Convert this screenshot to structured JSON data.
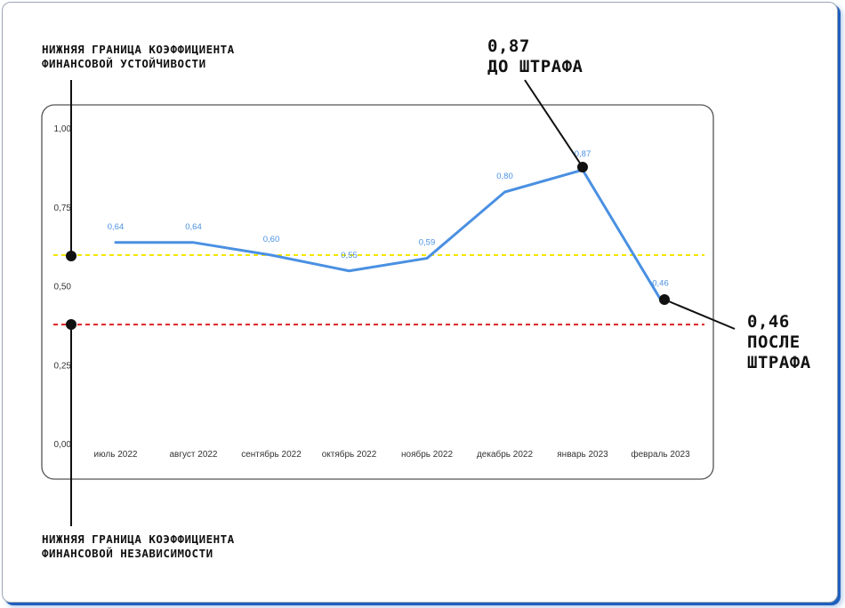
{
  "chart_data": {
    "type": "line",
    "categories": [
      "июль 2022",
      "август 2022",
      "сентябрь 2022",
      "октябрь 2022",
      "ноябрь 2022",
      "декабрь 2022",
      "январь 2023",
      "февраль 2023"
    ],
    "series": [
      {
        "values": [
          0.64,
          0.64,
          0.6,
          0.55,
          0.59,
          0.8,
          0.87,
          0.46
        ],
        "color": "#4a90e2"
      }
    ],
    "data_labels": [
      "0,64",
      "0,64",
      "0,60",
      "0,55",
      "0,59",
      "0,80",
      "0,87",
      "0,46"
    ],
    "y_ticks": [
      0.0,
      0.25,
      0.5,
      0.75,
      1.0
    ],
    "y_tick_labels": [
      "0,00",
      "0,25",
      "0,50",
      "0,75",
      "1,00"
    ],
    "ylim": [
      0,
      1
    ],
    "grid": false,
    "reference_lines": [
      {
        "value": 0.6,
        "color": "#f2e600",
        "style": "dashed"
      },
      {
        "value": 0.38,
        "color": "#e02020",
        "style": "dashed"
      }
    ]
  },
  "annotations": {
    "upper_bound_label": [
      "НИЖНЯЯ ГРАНИЦА КОЭФФИЦИЕНТА",
      "ФИНАНСОВОЙ УСТОЙЧИВОСТИ"
    ],
    "lower_bound_label": [
      "НИЖНЯЯ ГРАНИЦА КОЭФФИЦИЕНТА",
      "ФИНАНСОВОЙ НЕЗАВИСИМОСТИ"
    ],
    "before_penalty": [
      "0,87",
      "ДО ШТРАФА"
    ],
    "after_penalty": [
      "0,46",
      "ПОСЛЕ",
      "ШТРАФА"
    ]
  },
  "colors": {
    "line": "#4a90e2",
    "frame_shadow": "#1f5fbf",
    "annotation": "#111111"
  }
}
